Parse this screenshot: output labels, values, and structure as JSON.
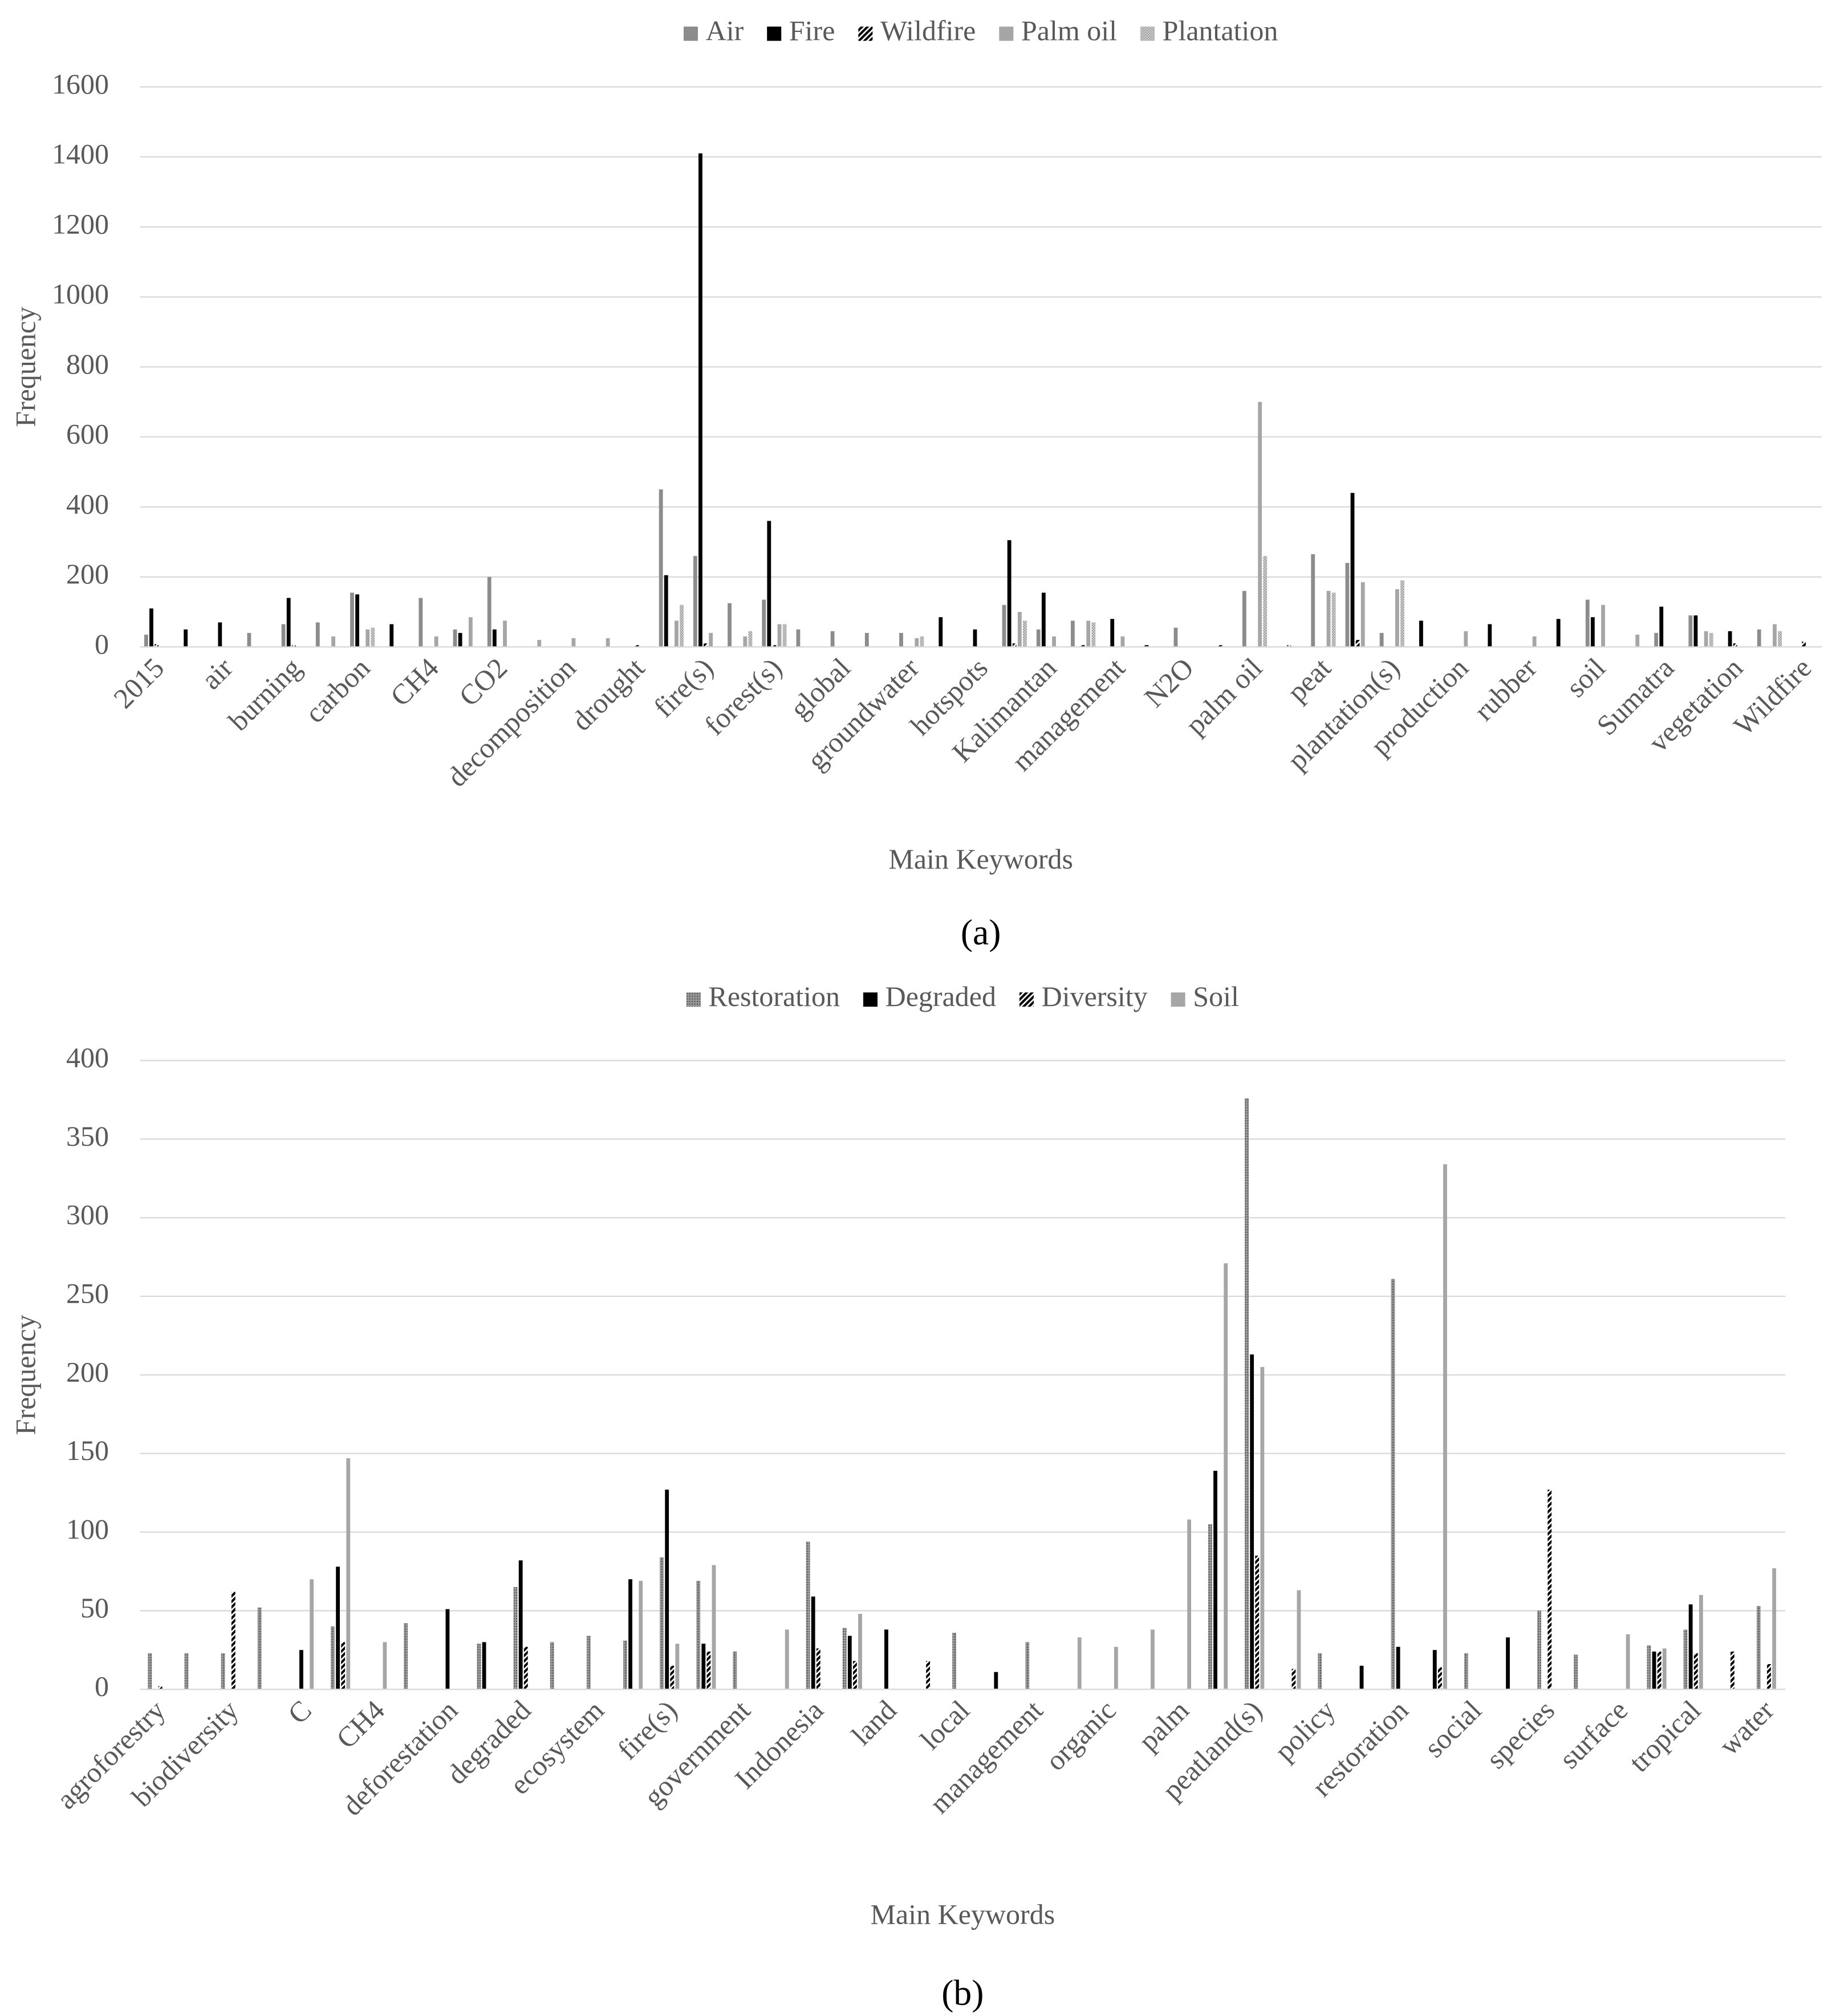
{
  "chart_data": [
    {
      "type": "bar",
      "caption": "(a)",
      "xlabel": "Main Keywords",
      "ylabel": "Frequency",
      "categories": [
        "2015",
        null,
        "air",
        null,
        "burning",
        null,
        "carbon",
        null,
        "CH4",
        null,
        "CO2",
        null,
        "decomposition",
        null,
        "drought",
        null,
        "fire(s)",
        null,
        "forest(s)",
        null,
        "global",
        null,
        "groundwater",
        null,
        "hotspots",
        null,
        "Kalimantan",
        null,
        "management",
        null,
        "N2O",
        null,
        "palm oil",
        null,
        "peat",
        null,
        "plantation(s)",
        null,
        "production",
        null,
        "rubber",
        null,
        "soil",
        null,
        "Sumatra",
        null,
        "vegetation",
        null,
        "Wildfire"
      ],
      "series": [
        {
          "name": "Air",
          "color": "#8c8c8c",
          "values": [
            35,
            0,
            0,
            40,
            65,
            70,
            155,
            0,
            140,
            50,
            200,
            0,
            0,
            0,
            0,
            450,
            260,
            125,
            135,
            50,
            45,
            40,
            40,
            0,
            0,
            120,
            50,
            75,
            0,
            0,
            55,
            0,
            160,
            0,
            265,
            240,
            40,
            0,
            0,
            0,
            0,
            0,
            135,
            0,
            40,
            90,
            0,
            50,
            0
          ]
        },
        {
          "name": "Fire",
          "color": "#000000",
          "values": [
            110,
            50,
            70,
            0,
            140,
            0,
            150,
            65,
            0,
            40,
            50,
            0,
            0,
            0,
            0,
            205,
            1410,
            0,
            360,
            0,
            0,
            0,
            0,
            85,
            50,
            305,
            155,
            0,
            80,
            5,
            0,
            0,
            0,
            0,
            0,
            440,
            0,
            75,
            0,
            65,
            0,
            80,
            85,
            0,
            115,
            90,
            45,
            0,
            0
          ]
        },
        {
          "name": "Wildfire",
          "color": "#000000",
          "pattern": "hatch",
          "values": [
            8,
            0,
            0,
            0,
            5,
            0,
            0,
            0,
            0,
            0,
            0,
            0,
            0,
            0,
            5,
            0,
            10,
            0,
            5,
            0,
            0,
            0,
            0,
            0,
            0,
            10,
            0,
            5,
            0,
            0,
            0,
            5,
            0,
            5,
            0,
            20,
            0,
            0,
            0,
            0,
            0,
            0,
            0,
            0,
            0,
            0,
            10,
            0,
            15
          ]
        },
        {
          "name": "Palm oil",
          "color": "#a6a6a6",
          "values": [
            0,
            0,
            0,
            0,
            0,
            30,
            50,
            0,
            30,
            85,
            75,
            20,
            25,
            25,
            0,
            75,
            40,
            30,
            65,
            0,
            0,
            0,
            25,
            0,
            0,
            100,
            30,
            75,
            30,
            0,
            0,
            0,
            700,
            0,
            160,
            185,
            165,
            0,
            45,
            0,
            30,
            0,
            120,
            35,
            0,
            45,
            0,
            65,
            0
          ]
        },
        {
          "name": "Plantation",
          "color": "#bfbfbf",
          "pattern": "check",
          "values": [
            0,
            0,
            0,
            0,
            0,
            0,
            55,
            0,
            0,
            0,
            0,
            0,
            0,
            0,
            0,
            120,
            0,
            45,
            65,
            0,
            0,
            0,
            30,
            0,
            0,
            75,
            0,
            70,
            0,
            0,
            0,
            0,
            260,
            0,
            155,
            0,
            190,
            0,
            0,
            0,
            0,
            0,
            0,
            0,
            0,
            40,
            0,
            45,
            0
          ]
        }
      ],
      "ylim": [
        0,
        1600
      ],
      "yticks": [
        0,
        200,
        400,
        600,
        800,
        1000,
        1200,
        1400,
        1600
      ],
      "grid": true,
      "legend": "top"
    },
    {
      "type": "bar",
      "caption": "(b)",
      "xlabel": "Main Keywords",
      "ylabel": "Frequency",
      "categories": [
        "agroforestry",
        null,
        "biodiversity",
        null,
        "C",
        null,
        "CH4",
        null,
        "deforestation",
        null,
        "degraded",
        null,
        "ecosystem",
        null,
        "fire(s)",
        null,
        "government",
        null,
        "Indonesia",
        null,
        "land",
        null,
        "local",
        null,
        "management",
        null,
        "organic",
        null,
        "palm",
        null,
        "peatland(s)",
        null,
        "policy",
        null,
        "restoration",
        null,
        "social",
        null,
        "species",
        null,
        "surface",
        null,
        "tropical",
        null,
        "water"
      ],
      "series": [
        {
          "name": "Restoration",
          "color": "#7f7f7f",
          "pattern": "dots",
          "values": [
            23,
            23,
            23,
            52,
            0,
            40,
            0,
            42,
            0,
            29,
            65,
            30,
            34,
            31,
            84,
            69,
            24,
            0,
            94,
            39,
            0,
            0,
            36,
            0,
            30,
            0,
            0,
            0,
            0,
            105,
            376,
            0,
            23,
            0,
            261,
            0,
            23,
            0,
            50,
            22,
            0,
            28,
            38,
            0,
            53
          ]
        },
        {
          "name": "Degraded",
          "color": "#000000",
          "values": [
            0,
            0,
            0,
            0,
            25,
            78,
            0,
            0,
            51,
            30,
            82,
            0,
            0,
            70,
            127,
            29,
            0,
            0,
            59,
            34,
            38,
            0,
            0,
            11,
            0,
            0,
            0,
            0,
            0,
            139,
            213,
            0,
            0,
            15,
            27,
            25,
            0,
            33,
            0,
            0,
            0,
            24,
            54,
            0,
            0
          ]
        },
        {
          "name": "Diversity",
          "color": "#000000",
          "pattern": "hatch",
          "values": [
            2,
            0,
            62,
            0,
            0,
            30,
            0,
            0,
            0,
            0,
            27,
            0,
            0,
            0,
            15,
            24,
            0,
            0,
            26,
            18,
            0,
            18,
            0,
            0,
            0,
            0,
            0,
            0,
            0,
            0,
            85,
            13,
            0,
            0,
            0,
            14,
            0,
            0,
            127,
            0,
            0,
            24,
            23,
            24,
            16
          ]
        },
        {
          "name": "Soil",
          "color": "#a6a6a6",
          "values": [
            0,
            0,
            0,
            0,
            70,
            147,
            30,
            0,
            0,
            0,
            0,
            0,
            0,
            69,
            29,
            79,
            0,
            38,
            0,
            48,
            0,
            0,
            0,
            0,
            0,
            33,
            27,
            38,
            108,
            271,
            205,
            63,
            0,
            0,
            0,
            334,
            0,
            0,
            0,
            0,
            35,
            26,
            60,
            0,
            77
          ]
        }
      ],
      "ylim": [
        0,
        400
      ],
      "yticks": [
        0,
        50,
        100,
        150,
        200,
        250,
        300,
        350,
        400
      ],
      "grid": true,
      "legend": "top"
    }
  ]
}
